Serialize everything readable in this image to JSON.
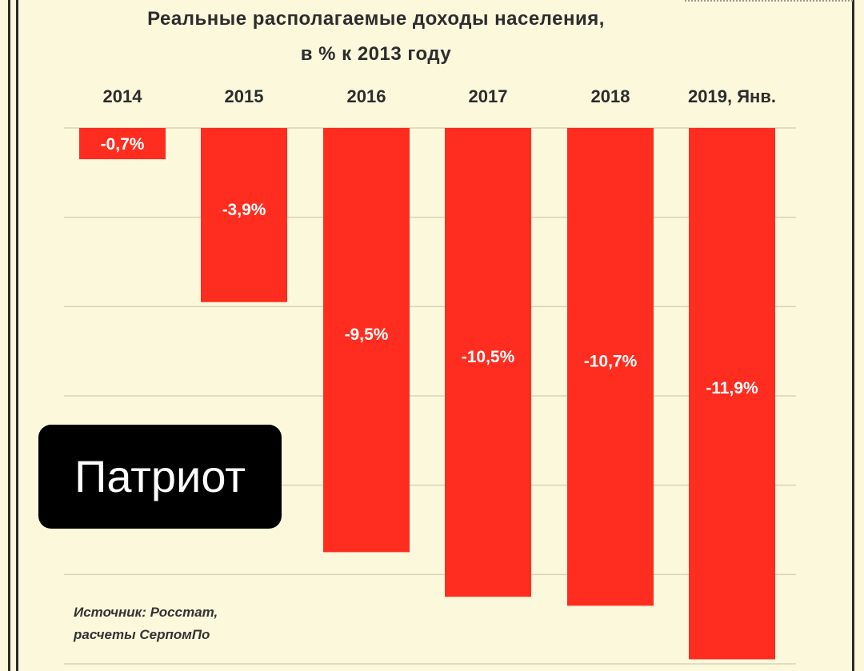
{
  "chart_data": {
    "type": "bar",
    "title": "Реальные располагаемые доходы населения,",
    "subtitle": "в % к 2013 году",
    "categories": [
      "2014",
      "2015",
      "2016",
      "2017",
      "2018",
      "2019, Янв."
    ],
    "values": [
      -0.7,
      -3.9,
      -9.5,
      -10.5,
      -10.7,
      -11.9
    ],
    "data_labels": [
      "-0,7%",
      "-3,9%",
      "-9,5%",
      "-10,5%",
      "-10,7%",
      "-11,9%"
    ],
    "ylim": [
      -12,
      0
    ],
    "grid": true,
    "bar_color": "#ff2d1f"
  },
  "source": {
    "line1": "Источник: Росстат,",
    "line2": "расчеты СерпомПо"
  },
  "watermark": "Патриот"
}
